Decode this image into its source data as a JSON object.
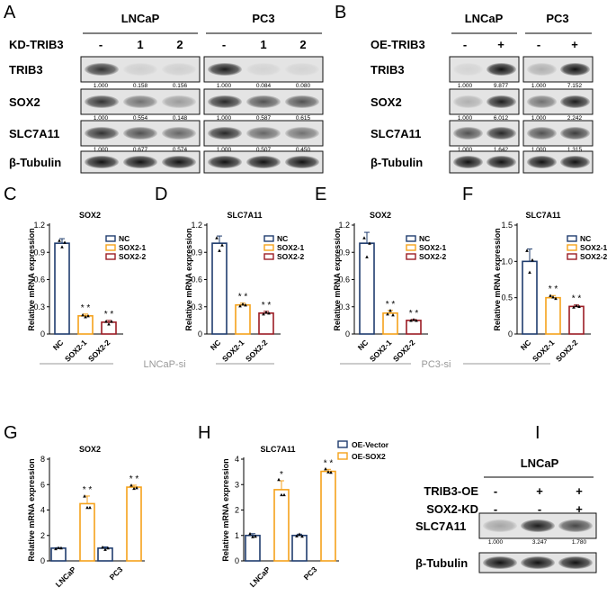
{
  "panels": {
    "A": {
      "label": "A",
      "cell_lines": [
        "LNCaP",
        "PC3"
      ],
      "condition_label": "KD-TRIB3",
      "lane_labels": [
        "-",
        "1",
        "2"
      ],
      "rows": [
        {
          "name": "TRIB3",
          "quant": [
            [
              "1.000",
              "0.158",
              "0.156"
            ],
            [
              "1.000",
              "0.084",
              "0.080"
            ]
          ]
        },
        {
          "name": "SOX2",
          "quant": [
            [
              "1.000",
              "0.554",
              "0.148"
            ],
            [
              "1.000",
              "0.587",
              "0.615"
            ]
          ]
        },
        {
          "name": "SLC7A11",
          "quant": [
            [
              "1.000",
              "0.677",
              "0.574"
            ],
            [
              "1.000",
              "0.507",
              "0.450"
            ]
          ]
        },
        {
          "name": "β-Tubulin",
          "quant": null
        }
      ]
    },
    "B": {
      "label": "B",
      "cell_lines": [
        "LNCaP",
        "PC3"
      ],
      "condition_label": "OE-TRIB3",
      "lane_labels": [
        "-",
        "+"
      ],
      "rows": [
        {
          "name": "TRIB3",
          "quant": [
            [
              "1.000",
              "9.877"
            ],
            [
              "1.000",
              "7.152"
            ]
          ]
        },
        {
          "name": "SOX2",
          "quant": [
            [
              "1.000",
              "6.012"
            ],
            [
              "1.000",
              "2.242"
            ]
          ]
        },
        {
          "name": "SLC7A11",
          "quant": [
            [
              "1.000",
              "1.642"
            ],
            [
              "1.000",
              "1.315"
            ]
          ]
        },
        {
          "name": "β-Tubulin",
          "quant": null
        }
      ]
    },
    "I": {
      "label": "I",
      "cell_line": "LNCaP",
      "conditions": [
        {
          "name": "TRIB3-OE",
          "lanes": [
            "-",
            "+",
            "+"
          ]
        },
        {
          "name": "SOX2-KD",
          "lanes": [
            "-",
            "-",
            "+"
          ]
        }
      ],
      "rows": [
        {
          "name": "SLC7A11",
          "quant": [
            "1.000",
            "3.247",
            "1.780"
          ]
        },
        {
          "name": "β-Tubulin",
          "quant": null
        }
      ]
    }
  },
  "group_labels": {
    "lncap_si": "LNCaP-si",
    "pc3_si": "PC3-si"
  },
  "chart_data": [
    {
      "panel": "C",
      "type": "bar",
      "title": "SOX2",
      "ylabel": "Relative mRNA expression",
      "categories": [
        "NC",
        "SOX2-1",
        "SOX2-2"
      ],
      "values": [
        1.0,
        0.2,
        0.13
      ],
      "errors": [
        0.05,
        0.02,
        0.02
      ],
      "points": [
        [
          1.03,
          0.96,
          1.01
        ],
        [
          0.21,
          0.19,
          0.2
        ],
        [
          0.14,
          0.11,
          0.14
        ]
      ],
      "significance": [
        "",
        "* *",
        "* *"
      ],
      "colors": [
        "#1f3c6e",
        "#f5a21b",
        "#9b1c24"
      ],
      "legend": [
        "NC",
        "SOX2-1",
        "SOX2-2"
      ],
      "yticks": [
        "0",
        "0.3",
        "0.6",
        "0.9",
        "1.2"
      ],
      "ylim": [
        0,
        1.2
      ]
    },
    {
      "panel": "D",
      "type": "bar",
      "title": "SLC7A11",
      "ylabel": "Relative mRNA expression",
      "categories": [
        "NC",
        "SOX2-1",
        "SOX2-2"
      ],
      "values": [
        1.0,
        0.32,
        0.23
      ],
      "errors": [
        0.08,
        0.02,
        0.02
      ],
      "points": [
        [
          1.06,
          0.92,
          0.98
        ],
        [
          0.31,
          0.33,
          0.32
        ],
        [
          0.22,
          0.24,
          0.23
        ]
      ],
      "significance": [
        "",
        "* *",
        "* *"
      ],
      "colors": [
        "#1f3c6e",
        "#f5a21b",
        "#9b1c24"
      ],
      "legend": [
        "NC",
        "SOX2-1",
        "SOX2-2"
      ],
      "yticks": [
        "0",
        "0.3",
        "0.6",
        "0.9",
        "1.2"
      ],
      "ylim": [
        0,
        1.2
      ]
    },
    {
      "panel": "E",
      "type": "bar",
      "title": "SOX2",
      "ylabel": "Relative mRNA expression",
      "categories": [
        "NC",
        "SOX2-1",
        "SOX2-2"
      ],
      "values": [
        1.0,
        0.23,
        0.15
      ],
      "errors": [
        0.12,
        0.03,
        0.01
      ],
      "points": [
        [
          1.06,
          0.85,
          1.0
        ],
        [
          0.22,
          0.26,
          0.21
        ],
        [
          0.15,
          0.16,
          0.15
        ]
      ],
      "significance": [
        "",
        "* *",
        "* *"
      ],
      "colors": [
        "#1f3c6e",
        "#f5a21b",
        "#9b1c24"
      ],
      "legend": [
        "NC",
        "SOX2-1",
        "SOX2-2"
      ],
      "yticks": [
        "0",
        "0.3",
        "0.6",
        "0.9",
        "1.2"
      ],
      "ylim": [
        0,
        1.2
      ]
    },
    {
      "panel": "F",
      "type": "bar",
      "title": "SLC7A11",
      "ylabel": "Relative mRNA expression",
      "categories": [
        "NC",
        "SOX2-1",
        "SOX2-2"
      ],
      "values": [
        1.0,
        0.5,
        0.38
      ],
      "errors": [
        0.17,
        0.03,
        0.02
      ],
      "points": [
        [
          1.15,
          0.85,
          1.02
        ],
        [
          0.53,
          0.51,
          0.49
        ],
        [
          0.37,
          0.39,
          0.38
        ]
      ],
      "significance": [
        "",
        "* *",
        "* *"
      ],
      "colors": [
        "#1f3c6e",
        "#f5a21b",
        "#9b1c24"
      ],
      "legend": [
        "NC",
        "SOX2-1",
        "SOX2-2"
      ],
      "yticks": [
        "0",
        "0.5",
        "1.0",
        "1.5"
      ],
      "ylim": [
        0,
        1.5
      ]
    },
    {
      "panel": "G",
      "type": "bar",
      "title": "SOX2",
      "ylabel": "Relative mRNA expression",
      "categories": [
        "LNCaP",
        "PC3"
      ],
      "series": [
        {
          "name": "OE-Vector",
          "values": [
            1.0,
            1.0
          ],
          "errors": [
            0.04,
            0.1
          ],
          "points": [
            [
              0.95,
              1.03,
              1.02
            ],
            [
              1.08,
              0.9,
              1.02
            ]
          ]
        },
        {
          "name": "OE-SOX2",
          "values": [
            4.5,
            5.8
          ],
          "errors": [
            0.6,
            0.15
          ],
          "points": [
            [
              5.1,
              4.2,
              4.2
            ],
            [
              5.95,
              5.7,
              5.75
            ]
          ]
        }
      ],
      "significance": [
        "* *",
        "* *"
      ],
      "colors": [
        "#1f3c6e",
        "#f5a21b"
      ],
      "yticks": [
        "0",
        "2",
        "4",
        "6",
        "8"
      ],
      "ylim": [
        0,
        8
      ]
    },
    {
      "panel": "H",
      "type": "bar",
      "title": "SLC7A11",
      "ylabel": "Relative mRNA expression",
      "categories": [
        "LNCaP",
        "PC3"
      ],
      "series": [
        {
          "name": "OE-Vector",
          "values": [
            1.0,
            1.0
          ],
          "errors": [
            0.07,
            0.05
          ],
          "points": [
            [
              1.07,
              0.95,
              0.97
            ],
            [
              0.98,
              1.05,
              0.97
            ]
          ]
        },
        {
          "name": "OE-SOX2",
          "values": [
            2.8,
            3.52
          ],
          "errors": [
            0.35,
            0.08
          ],
          "points": [
            [
              3.2,
              2.6,
              2.6
            ],
            [
              3.62,
              3.5,
              3.48
            ]
          ]
        }
      ],
      "significance": [
        "*",
        "* *"
      ],
      "colors": [
        "#1f3c6e",
        "#f5a21b"
      ],
      "legend": [
        "OE-Vector",
        "OE-SOX2"
      ],
      "yticks": [
        "0",
        "1",
        "2",
        "3",
        "4"
      ],
      "ylim": [
        0,
        4
      ]
    }
  ]
}
